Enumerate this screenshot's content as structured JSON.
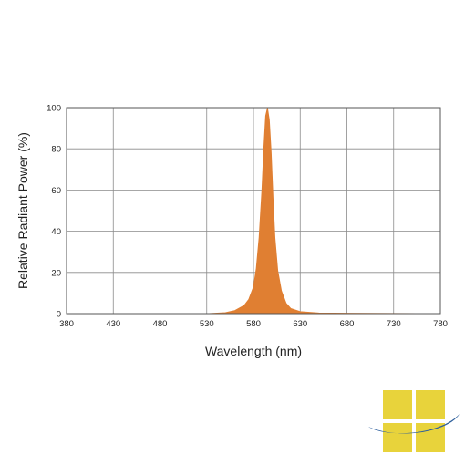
{
  "chart_data": {
    "type": "area",
    "title": "",
    "xlabel": "Wavelength (nm)",
    "ylabel": "Relative Radiant Power (%)",
    "xlim": [
      380,
      780
    ],
    "ylim": [
      0,
      100
    ],
    "x_ticks": [
      380,
      430,
      480,
      530,
      580,
      630,
      680,
      730,
      780
    ],
    "y_ticks": [
      0,
      20,
      40,
      60,
      80,
      100
    ],
    "x_tick_labels": [
      "380",
      "430",
      "480",
      "530",
      "580",
      "630",
      "680",
      "730",
      "780"
    ],
    "y_tick_labels": [
      "0",
      "20",
      "40",
      "60",
      "80",
      "100"
    ],
    "grid": true,
    "legend": "none",
    "series": [
      {
        "color": "#E07F32",
        "x": [
          380,
          530,
          550,
          560,
          570,
          575,
          580,
          583,
          586,
          589,
          591,
          593,
          595,
          597,
          599,
          601,
          603,
          606,
          610,
          615,
          620,
          630,
          650,
          780
        ],
        "y": [
          0,
          0,
          0.5,
          1.5,
          4,
          7,
          13,
          22,
          37,
          60,
          80,
          96,
          100,
          94,
          78,
          56,
          37,
          21,
          11,
          5,
          2.5,
          1,
          0.3,
          0
        ]
      }
    ]
  },
  "logo": {
    "colors": {
      "squares": "#E8D33B",
      "swoosh": "#2E5F9C"
    }
  }
}
